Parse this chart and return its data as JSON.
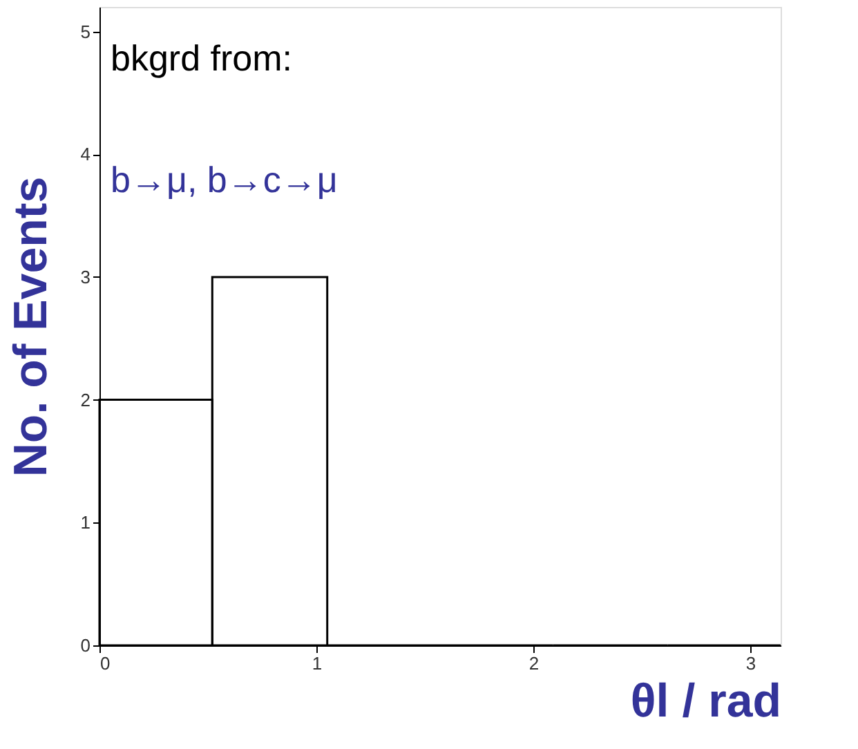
{
  "chart_data": {
    "type": "histogram",
    "xlabel": "θl / rad",
    "ylabel": "No. of Events",
    "annotations": [
      "bkgrd  from:",
      "b→μ, b→c→μ"
    ],
    "bins": [
      0,
      0.52,
      1.05,
      1.57,
      2.09,
      2.62,
      3.14
    ],
    "values": [
      2,
      3,
      0,
      0,
      0,
      0
    ],
    "color": "#000000",
    "xlim": [
      0,
      3.14
    ],
    "ylim": [
      0,
      5.2
    ],
    "xticks": [
      0,
      1,
      2,
      3
    ],
    "yticks": [
      0,
      1,
      2,
      3,
      4,
      5
    ],
    "grid": false
  }
}
